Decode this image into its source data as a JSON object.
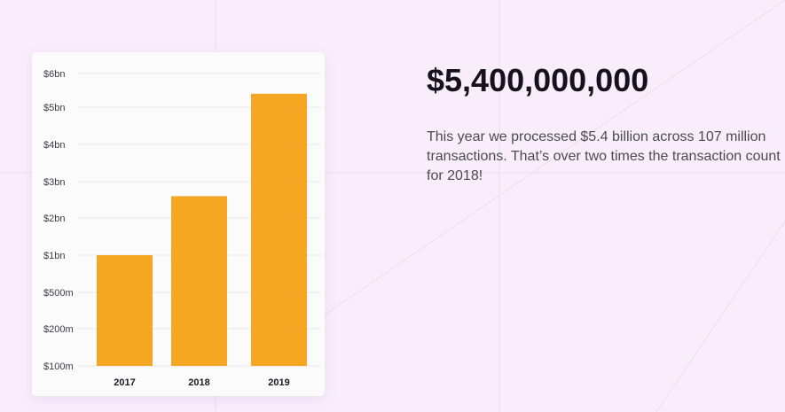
{
  "colors": {
    "background": "#f9edfc",
    "bar": "#f5a623",
    "gridline": "#e8e8ec",
    "headline": "#16111f",
    "text": "#4a4a55"
  },
  "headline": "$5,400,000,000",
  "description": "This year we processed $5.4 billion across 107 million transactions. That’s over two times the transaction count for 2018!",
  "chart_data": {
    "type": "bar",
    "title": "",
    "xlabel": "",
    "ylabel": "",
    "grid": true,
    "y_scale": "custom-nonlinear",
    "y_ticks": [
      {
        "value": 100000000,
        "label": "$100m"
      },
      {
        "value": 200000000,
        "label": "$200m"
      },
      {
        "value": 500000000,
        "label": "$500m"
      },
      {
        "value": 1000000000,
        "label": "$1bn"
      },
      {
        "value": 2000000000,
        "label": "$2bn"
      },
      {
        "value": 3000000000,
        "label": "$3bn"
      },
      {
        "value": 4000000000,
        "label": "$4bn"
      },
      {
        "value": 5000000000,
        "label": "$5bn"
      },
      {
        "value": 6000000000,
        "label": "$6bn"
      }
    ],
    "categories": [
      "2017",
      "2018",
      "2019"
    ],
    "values": [
      1000000000,
      2600000000,
      5400000000
    ]
  }
}
